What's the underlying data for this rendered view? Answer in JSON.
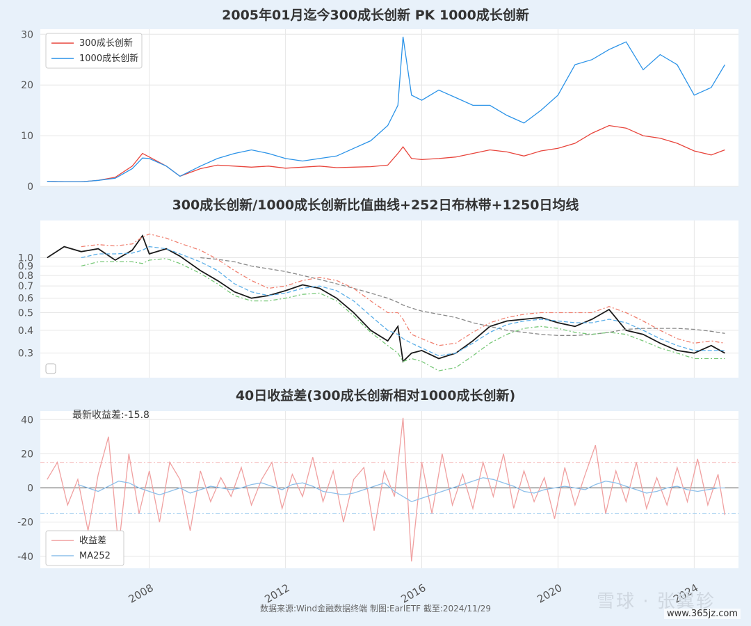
{
  "watermark": {
    "logo_text": "雪球 · 张翼轸",
    "site": "www.365jz.com"
  },
  "footer": {
    "source": "数据来源:Wind金融数据终端  制图:EarlETF 截至:2024/11/29"
  },
  "colors": {
    "red": "#e8453c",
    "blue": "#2b93e8",
    "black": "#1a1a1a",
    "ratio_ma": "#888888",
    "bb_mid": "#5aaee8",
    "bb_up": "#f08070",
    "bb_low": "#78c878",
    "spread": "#f0a0a0",
    "spread_ma": "#8ec0ea",
    "threshold_up": "#f4b0b0",
    "threshold_low": "#a8d0f0"
  },
  "x_axis": {
    "ticks": [
      "2008",
      "2012",
      "2016",
      "2020",
      "2024"
    ]
  },
  "chart_data": [
    {
      "type": "line",
      "title": "2005年01月迄今300成长创新 PK 1000成长创新",
      "legend_position": "top-left",
      "ylim": [
        0,
        31
      ],
      "yticks": [
        "0",
        "10",
        "20",
        "30"
      ],
      "x": [
        2005.0,
        2005.5,
        2006.0,
        2006.5,
        2007.0,
        2007.5,
        2007.8,
        2008.0,
        2008.5,
        2008.9,
        2009.5,
        2010.0,
        2010.5,
        2011.0,
        2011.5,
        2012.0,
        2012.5,
        2013.0,
        2013.5,
        2014.0,
        2014.5,
        2015.0,
        2015.3,
        2015.45,
        2015.7,
        2016.0,
        2016.5,
        2017.0,
        2017.5,
        2018.0,
        2018.5,
        2019.0,
        2019.5,
        2020.0,
        2020.5,
        2021.0,
        2021.5,
        2022.0,
        2022.5,
        2023.0,
        2023.5,
        2024.0,
        2024.5,
        2024.9
      ],
      "series": [
        {
          "name": "300成长创新",
          "color": "#e8453c",
          "values": [
            1,
            0.9,
            0.9,
            1.2,
            1.8,
            4,
            6.5,
            5.8,
            4.0,
            2.0,
            3.5,
            4.2,
            4.0,
            3.8,
            4.0,
            3.6,
            3.8,
            4.0,
            3.7,
            3.8,
            3.9,
            4.2,
            6.5,
            7.8,
            5.5,
            5.3,
            5.5,
            5.8,
            6.5,
            7.2,
            6.8,
            6.0,
            7.0,
            7.5,
            8.5,
            10.5,
            12.0,
            11.5,
            10.0,
            9.5,
            8.5,
            7.0,
            6.2,
            7.2
          ]
        },
        {
          "name": "1000成长创新",
          "color": "#2b93e8",
          "values": [
            1,
            0.9,
            0.9,
            1.2,
            1.6,
            3.5,
            5.6,
            5.5,
            4.0,
            2.0,
            4.0,
            5.5,
            6.5,
            7.2,
            6.5,
            5.5,
            5.0,
            5.5,
            6.0,
            7.5,
            9.0,
            12.0,
            16.0,
            29.5,
            18.0,
            17.0,
            19.0,
            17.5,
            16.0,
            16.0,
            14.0,
            12.5,
            15.0,
            18.0,
            24.0,
            25.0,
            27.0,
            28.5,
            23.0,
            26.0,
            24.0,
            18.0,
            19.5,
            24.0
          ]
        }
      ]
    },
    {
      "type": "line",
      "title": "300成长创新/1000成长创新比值曲线+252日布林带+1250日均线",
      "yscale": "log",
      "ylim": [
        0.22,
        1.6
      ],
      "yticks": [
        "0.3",
        "0.4",
        "0.5",
        "0.6",
        "0.7",
        "0.8",
        "0.9",
        "1.0"
      ],
      "x": [
        2005.0,
        2005.5,
        2006.0,
        2006.5,
        2007.0,
        2007.5,
        2007.8,
        2008.0,
        2008.5,
        2008.9,
        2009.5,
        2010.0,
        2010.5,
        2011.0,
        2011.5,
        2012.0,
        2012.5,
        2013.0,
        2013.5,
        2014.0,
        2014.5,
        2015.0,
        2015.3,
        2015.45,
        2015.7,
        2016.0,
        2016.5,
        2017.0,
        2017.5,
        2018.0,
        2018.5,
        2019.0,
        2019.5,
        2020.0,
        2020.5,
        2021.0,
        2021.5,
        2022.0,
        2022.5,
        2023.0,
        2023.5,
        2024.0,
        2024.5,
        2024.9
      ],
      "series": [
        {
          "name": "",
          "color": "#1a1a1a",
          "values": [
            1.0,
            1.15,
            1.08,
            1.12,
            0.97,
            1.1,
            1.32,
            1.05,
            1.12,
            1.02,
            0.85,
            0.75,
            0.65,
            0.6,
            0.62,
            0.66,
            0.71,
            0.68,
            0.6,
            0.5,
            0.4,
            0.35,
            0.42,
            0.27,
            0.3,
            0.31,
            0.28,
            0.3,
            0.35,
            0.42,
            0.45,
            0.46,
            0.47,
            0.44,
            0.42,
            0.46,
            0.52,
            0.4,
            0.38,
            0.34,
            0.31,
            0.3,
            0.33,
            0.3
          ]
        },
        {
          "name": "",
          "color": "#888888",
          "dash": "6,3",
          "values": [
            null,
            null,
            null,
            null,
            null,
            null,
            null,
            null,
            null,
            null,
            1.0,
            0.98,
            0.95,
            0.9,
            0.87,
            0.84,
            0.8,
            0.76,
            0.72,
            0.68,
            0.64,
            0.6,
            0.57,
            0.55,
            0.53,
            0.51,
            0.49,
            0.47,
            0.44,
            0.42,
            0.4,
            0.39,
            0.38,
            0.375,
            0.375,
            0.38,
            0.39,
            0.405,
            0.41,
            0.41,
            0.41,
            0.405,
            0.395,
            0.385
          ]
        },
        {
          "name": "",
          "color": "#5aaee8",
          "dash": "6,3",
          "values": [
            null,
            null,
            1.0,
            1.05,
            1.05,
            1.06,
            1.1,
            1.15,
            1.12,
            1.05,
            0.95,
            0.85,
            0.72,
            0.65,
            0.62,
            0.64,
            0.68,
            0.7,
            0.66,
            0.58,
            0.48,
            0.4,
            0.38,
            0.36,
            0.34,
            0.32,
            0.29,
            0.3,
            0.34,
            0.39,
            0.43,
            0.45,
            0.46,
            0.45,
            0.44,
            0.44,
            0.46,
            0.44,
            0.4,
            0.36,
            0.33,
            0.31,
            0.31,
            0.31
          ]
        },
        {
          "name": "",
          "color": "#f08070",
          "dash": "6,3,2,3",
          "values": [
            null,
            null,
            1.15,
            1.18,
            1.16,
            1.19,
            1.3,
            1.35,
            1.28,
            1.2,
            1.1,
            0.98,
            0.85,
            0.75,
            0.68,
            0.7,
            0.75,
            0.78,
            0.75,
            0.68,
            0.58,
            0.5,
            0.5,
            0.46,
            0.38,
            0.36,
            0.33,
            0.34,
            0.39,
            0.44,
            0.47,
            0.49,
            0.5,
            0.5,
            0.5,
            0.5,
            0.54,
            0.5,
            0.45,
            0.4,
            0.36,
            0.34,
            0.35,
            0.34
          ]
        },
        {
          "name": "",
          "color": "#78c878",
          "dash": "6,3,2,3",
          "values": [
            null,
            null,
            0.9,
            0.95,
            0.95,
            0.95,
            0.93,
            0.97,
            0.99,
            0.93,
            0.82,
            0.72,
            0.62,
            0.58,
            0.58,
            0.6,
            0.63,
            0.64,
            0.58,
            0.48,
            0.39,
            0.33,
            0.3,
            0.27,
            0.28,
            0.27,
            0.24,
            0.25,
            0.29,
            0.34,
            0.38,
            0.41,
            0.42,
            0.41,
            0.39,
            0.38,
            0.39,
            0.38,
            0.35,
            0.32,
            0.3,
            0.28,
            0.28,
            0.28
          ]
        }
      ]
    },
    {
      "type": "line",
      "title": "40日收益差(300成长创新相对1000成长创新)",
      "annotation": "最新收益差:-15.8",
      "legend_position": "bottom-left",
      "ylim": [
        -47,
        45
      ],
      "yticks": [
        "40",
        "20",
        "0",
        "-20",
        "-40"
      ],
      "hlines": [
        15,
        -15,
        0
      ],
      "x": [
        2005.0,
        2005.3,
        2005.6,
        2005.9,
        2006.2,
        2006.5,
        2006.8,
        2007.1,
        2007.4,
        2007.7,
        2008.0,
        2008.3,
        2008.6,
        2008.9,
        2009.2,
        2009.5,
        2009.8,
        2010.1,
        2010.4,
        2010.7,
        2011.0,
        2011.3,
        2011.6,
        2011.9,
        2012.2,
        2012.5,
        2012.8,
        2013.1,
        2013.4,
        2013.7,
        2014.0,
        2014.3,
        2014.6,
        2014.9,
        2015.2,
        2015.45,
        2015.7,
        2016.0,
        2016.3,
        2016.6,
        2016.9,
        2017.2,
        2017.5,
        2017.8,
        2018.1,
        2018.4,
        2018.7,
        2019.0,
        2019.3,
        2019.6,
        2019.9,
        2020.2,
        2020.5,
        2020.8,
        2021.1,
        2021.4,
        2021.7,
        2022.0,
        2022.3,
        2022.6,
        2022.9,
        2023.2,
        2023.5,
        2023.8,
        2024.1,
        2024.4,
        2024.7,
        2024.9
      ],
      "series": [
        {
          "name": "收益差",
          "color": "#f0a0a0",
          "values": [
            5,
            15,
            -10,
            5,
            -25,
            8,
            30,
            -35,
            20,
            -15,
            10,
            -20,
            15,
            5,
            -25,
            10,
            -8,
            6,
            -5,
            12,
            -10,
            5,
            15,
            -12,
            8,
            -5,
            18,
            -8,
            10,
            -20,
            5,
            12,
            -25,
            10,
            -5,
            41,
            -43,
            15,
            -15,
            20,
            -10,
            8,
            -12,
            15,
            -5,
            20,
            -12,
            10,
            -8,
            6,
            -18,
            12,
            -10,
            8,
            25,
            -15,
            10,
            -8,
            15,
            -12,
            6,
            -10,
            12,
            -8,
            17,
            -10,
            8,
            -15.8
          ]
        },
        {
          "name": "MA252",
          "color": "#8ec0ea",
          "values": [
            null,
            null,
            null,
            2,
            0,
            -2,
            1,
            4,
            3,
            0,
            -2,
            -4,
            -2,
            0,
            -3,
            -1,
            1,
            0,
            -1,
            0,
            2,
            3,
            1,
            -1,
            2,
            3,
            1,
            -2,
            -3,
            -4,
            -3,
            -1,
            1,
            3,
            -2,
            -5,
            -8,
            -6,
            -4,
            -2,
            0,
            2,
            4,
            6,
            5,
            3,
            1,
            -2,
            -3,
            -1,
            0,
            1,
            0,
            -1,
            2,
            4,
            3,
            1,
            -1,
            -3,
            -2,
            0,
            1,
            -1,
            -2,
            -1,
            0,
            0
          ]
        }
      ]
    }
  ]
}
